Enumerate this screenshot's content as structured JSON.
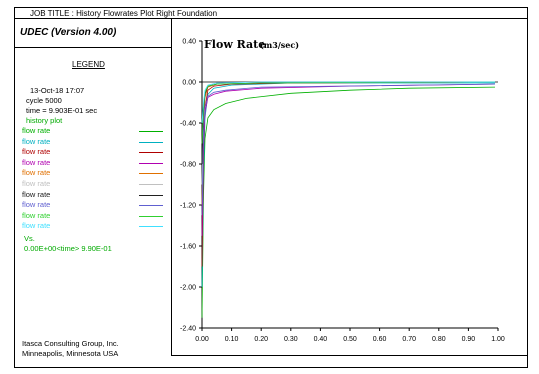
{
  "header": {
    "job_title": "JOB TITLE :  History Flowrates Plot Right Foundation"
  },
  "left_panel": {
    "app_name": "UDEC (Version 4.00)",
    "legend_title": "LEGEND",
    "date": "13-Oct-18  17:07",
    "cycle": "cycle     5000",
    "time": "time =  9.903E-01 sec",
    "history_label": "history plot",
    "vs_label": "Vs.",
    "time_range": "0.00E+00<time> 9.90E-01",
    "company": "Itasca Consulting Group, Inc.",
    "location": "Minneapolis, Minnesota  USA"
  },
  "colors": {
    "history_label": "#00aa00",
    "vs_label": "#00aa00",
    "time_range": "#00aa00"
  },
  "chart_data": {
    "type": "line",
    "title": "Flow Rate",
    "title_unit": "(m3/sec)",
    "xlim": [
      0.0,
      1.0
    ],
    "ylim": [
      -2.4,
      0.4
    ],
    "x_ticks": [
      "0.00",
      "0.10",
      "0.20",
      "0.30",
      "0.40",
      "0.50",
      "0.60",
      "0.70",
      "0.80",
      "0.90",
      "1.00"
    ],
    "y_ticks": [
      "0.40",
      "0.00",
      "-0.40",
      "-0.80",
      "-1.20",
      "-1.60",
      "-2.00",
      "-2.40"
    ],
    "y_tick_values": [
      0.4,
      0.0,
      -0.4,
      -0.8,
      -1.2,
      -1.6,
      -2.0,
      -2.4
    ],
    "series": [
      {
        "name": "flow rate",
        "color": "#00b000",
        "x": [
          0.0,
          0.005,
          0.01,
          0.02,
          0.04,
          0.08,
          0.15,
          0.3,
          0.5,
          0.7,
          0.99
        ],
        "y": [
          -2.3,
          -1.1,
          -0.55,
          -0.35,
          -0.27,
          -0.21,
          -0.16,
          -0.11,
          -0.08,
          -0.06,
          -0.05
        ]
      },
      {
        "name": "flow rate",
        "color": "#00b0c0",
        "x": [
          0.0,
          0.005,
          0.01,
          0.02,
          0.04,
          0.1,
          0.3,
          0.99
        ],
        "y": [
          -2.0,
          -0.9,
          -0.35,
          -0.12,
          -0.06,
          -0.03,
          -0.01,
          -0.01
        ]
      },
      {
        "name": "flow rate",
        "color": "#b00000",
        "x": [
          0.0,
          0.005,
          0.01,
          0.02,
          0.04,
          0.1,
          0.3,
          0.99
        ],
        "y": [
          -1.8,
          -0.7,
          -0.25,
          -0.08,
          -0.04,
          -0.02,
          -0.01,
          0.0
        ]
      },
      {
        "name": "flow rate",
        "color": "#b000b0",
        "x": [
          0.0,
          0.005,
          0.01,
          0.02,
          0.04,
          0.08,
          0.2,
          0.5,
          0.99
        ],
        "y": [
          -1.5,
          -0.6,
          -0.3,
          -0.15,
          -0.12,
          -0.09,
          -0.06,
          -0.04,
          -0.02
        ]
      },
      {
        "name": "flow rate",
        "color": "#e07000",
        "x": [
          0.0,
          0.005,
          0.01,
          0.02,
          0.05,
          0.2,
          0.99
        ],
        "y": [
          -1.2,
          -0.4,
          -0.15,
          -0.05,
          -0.02,
          -0.01,
          0.0
        ]
      },
      {
        "name": "flow rate",
        "color": "#c0c0c0",
        "x": [
          0.0,
          0.005,
          0.01,
          0.02,
          0.05,
          0.2,
          0.99
        ],
        "y": [
          -1.0,
          -0.35,
          -0.1,
          -0.04,
          -0.02,
          -0.01,
          0.0
        ]
      },
      {
        "name": "flow rate",
        "color": "#202020",
        "x": [
          0.0,
          0.005,
          0.01,
          0.02,
          0.05,
          0.2,
          0.99
        ],
        "y": [
          -0.8,
          -0.3,
          -0.12,
          -0.04,
          -0.02,
          -0.01,
          0.0
        ]
      },
      {
        "name": "flow rate",
        "color": "#6060d0",
        "x": [
          0.0,
          0.005,
          0.01,
          0.02,
          0.04,
          0.08,
          0.2,
          0.99
        ],
        "y": [
          -1.3,
          -0.5,
          -0.25,
          -0.14,
          -0.1,
          -0.08,
          -0.05,
          -0.02
        ]
      },
      {
        "name": "flow rate",
        "color": "#30d030",
        "x": [
          0.0,
          0.005,
          0.01,
          0.02,
          0.05,
          0.2,
          0.99
        ],
        "y": [
          -0.6,
          -0.25,
          -0.1,
          -0.04,
          -0.02,
          -0.01,
          0.0
        ]
      },
      {
        "name": "flow rate",
        "color": "#40e0ff",
        "x": [
          0.0,
          0.005,
          0.01,
          0.02,
          0.05,
          0.2,
          0.99
        ],
        "y": [
          -0.4,
          -0.2,
          -0.08,
          -0.03,
          -0.01,
          0.0,
          0.0
        ]
      }
    ]
  }
}
